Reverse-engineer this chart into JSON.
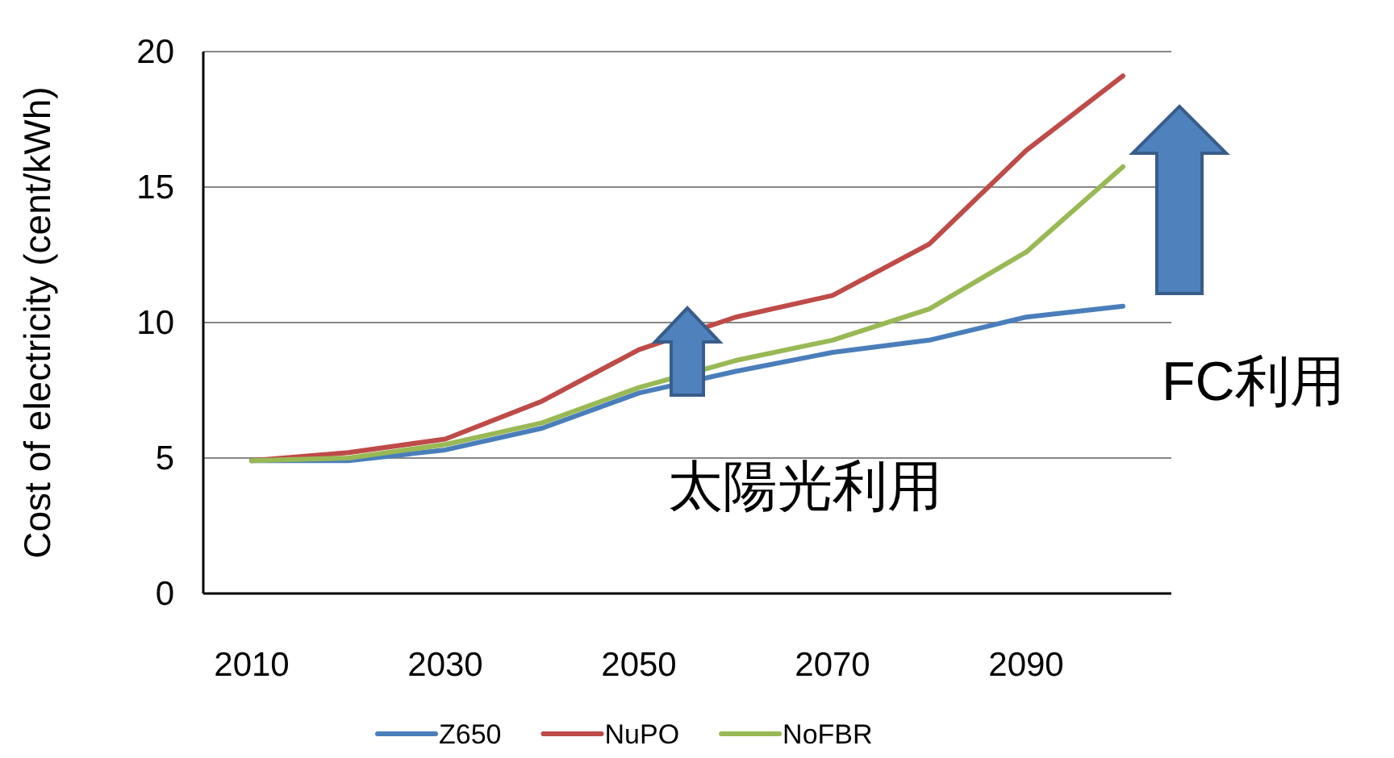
{
  "chart_data": {
    "type": "line",
    "ylabel": "Cost of electricity (cent/kWh)",
    "categories": [
      "2010",
      null,
      "2030",
      null,
      "2050",
      null,
      "2070",
      null,
      "2090",
      null
    ],
    "series": [
      {
        "name": "Z650",
        "color": "#4a7ebb",
        "values": [
          4.9,
          4.9,
          5.3,
          6.1,
          7.4,
          8.2,
          8.9,
          9.35,
          10.2,
          10.6
        ]
      },
      {
        "name": "NuPO",
        "color": "#be4b48",
        "values": [
          4.9,
          5.2,
          5.7,
          7.1,
          9.0,
          10.2,
          11.0,
          12.9,
          16.35,
          19.1
        ]
      },
      {
        "name": "NoFBR",
        "color": "#98b954",
        "values": [
          4.9,
          5.0,
          5.5,
          6.3,
          7.6,
          8.6,
          9.35,
          10.5,
          12.6,
          15.75
        ]
      }
    ],
    "ylim": [
      0,
      20
    ],
    "yticks": [
      0,
      5,
      10,
      15,
      20
    ],
    "grid": "y",
    "legend": "bottom",
    "marker": "none",
    "line_style": "solid",
    "annotations": [
      "太陽光利用",
      "FC利用"
    ]
  }
}
